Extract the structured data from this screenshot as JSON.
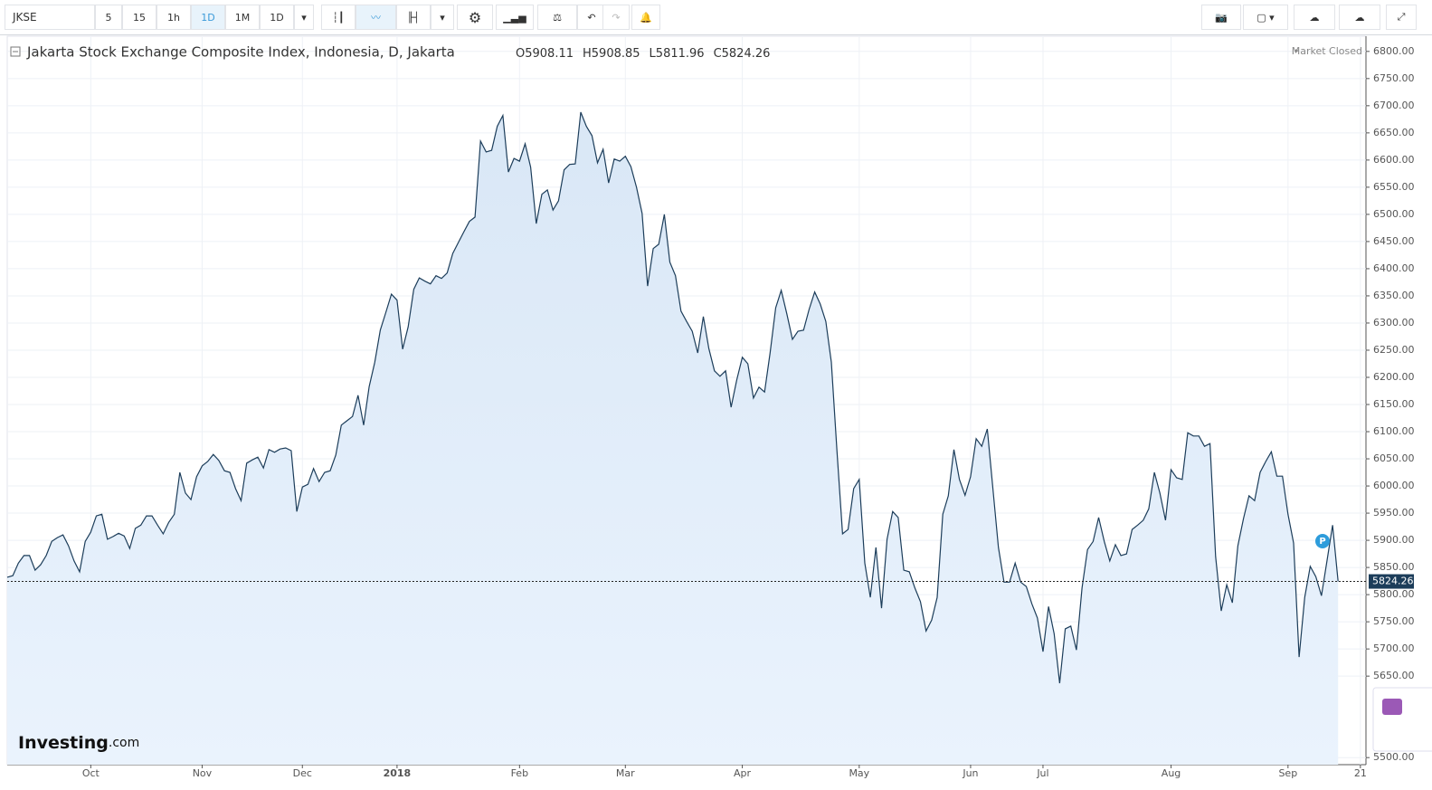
{
  "toolbar": {
    "symbol": "JKSE",
    "intervals": [
      "5",
      "15",
      "1h",
      "1D",
      "1M",
      "1D"
    ]
  },
  "chart_data": {
    "type": "line",
    "title": "Jakarta Stock Exchange Composite Index, Indonesia, D, Jakarta",
    "ohlc": [
      {
        "label": "O",
        "value": 5908.11
      },
      {
        "label": "H",
        "value": 5908.85
      },
      {
        "label": "L",
        "value": 5811.96
      },
      {
        "label": "C",
        "value": 5824.26
      }
    ],
    "status": "Market Closed",
    "logo": {
      "brand": "Investing",
      "suffix": ".com"
    },
    "color": "#1c3d5a",
    "fill": "#e4eefa",
    "grid": true,
    "last_price": 5824.26,
    "xlim": [
      0,
      244
    ],
    "xticks": [
      {
        "value": 15,
        "label": "Oct"
      },
      {
        "value": 35,
        "label": "Nov"
      },
      {
        "value": 53,
        "label": "Dec"
      },
      {
        "value": 70,
        "label": "2018"
      },
      {
        "value": 92,
        "label": "Feb"
      },
      {
        "value": 111,
        "label": "Mar"
      },
      {
        "value": 132,
        "label": "Apr"
      },
      {
        "value": 153,
        "label": "May"
      },
      {
        "value": 173,
        "label": "Jun"
      },
      {
        "value": 186,
        "label": "Jul"
      },
      {
        "value": 209,
        "label": "Aug"
      },
      {
        "value": 230,
        "label": "Sep"
      },
      {
        "value": 243,
        "label": "21"
      }
    ],
    "ylim": [
      5487,
      6828
    ],
    "yticks": [
      {
        "value": 6800,
        "label": "6800.00"
      },
      {
        "value": 6750,
        "label": "6750.00"
      },
      {
        "value": 6700,
        "label": "6700.00"
      },
      {
        "value": 6650,
        "label": "6650.00"
      },
      {
        "value": 6600,
        "label": "6600.00"
      },
      {
        "value": 6550,
        "label": "6550.00"
      },
      {
        "value": 6500,
        "label": "6500.00"
      },
      {
        "value": 6450,
        "label": "6450.00"
      },
      {
        "value": 6400,
        "label": "6400.00"
      },
      {
        "value": 6350,
        "label": "6350.00"
      },
      {
        "value": 6300,
        "label": "6300.00"
      },
      {
        "value": 6250,
        "label": "6250.00"
      },
      {
        "value": 6200,
        "label": "6200.00"
      },
      {
        "value": 6150,
        "label": "6150.00"
      },
      {
        "value": 6100,
        "label": "6100.00"
      },
      {
        "value": 6050,
        "label": "6050.00"
      },
      {
        "value": 6000,
        "label": "6000.00"
      },
      {
        "value": 5950,
        "label": "5950.00"
      },
      {
        "value": 5900,
        "label": "5900.00"
      },
      {
        "value": 5850,
        "label": "5850.00"
      },
      {
        "value": 5800,
        "label": "5800.00"
      },
      {
        "value": 5750,
        "label": "5750.00"
      },
      {
        "value": 5700,
        "label": "5700.00"
      },
      {
        "value": 5650,
        "label": "5650.00"
      },
      {
        "value": 5500,
        "label": "5500.00"
      }
    ],
    "values": [
      5832,
      5835,
      5858,
      5872,
      5872,
      5845,
      5855,
      5872,
      5898,
      5905,
      5910,
      5890,
      5862,
      5842,
      5898,
      5915,
      5945,
      5948,
      5902,
      5907,
      5913,
      5908,
      5885,
      5922,
      5928,
      5945,
      5945,
      5928,
      5912,
      5933,
      5948,
      6025,
      5987,
      5975,
      6017,
      6037,
      6045,
      6058,
      6047,
      6028,
      6025,
      5995,
      5973,
      6042,
      6048,
      6053,
      6033,
      6067,
      6062,
      6068,
      6070,
      6065,
      5953,
      5998,
      6003,
      6032,
      6008,
      6025,
      6028,
      6057,
      6112,
      6120,
      6128,
      6167,
      6112,
      6183,
      6228,
      6287,
      6320,
      6353,
      6342,
      6252,
      6293,
      6362,
      6383,
      6377,
      6372,
      6387,
      6382,
      6392,
      6428,
      6448,
      6468,
      6487,
      6495,
      6635,
      6615,
      6618,
      6662,
      6682,
      6578,
      6603,
      6598,
      6630,
      6587,
      6483,
      6537,
      6545,
      6508,
      6525,
      6582,
      6592,
      6593,
      6688,
      6662,
      6645,
      6595,
      6620,
      6558,
      6602,
      6598,
      6607,
      6588,
      6550,
      6502,
      6368,
      6437,
      6445,
      6500,
      6412,
      6387,
      6322,
      6303,
      6285,
      6245,
      6312,
      6253,
      6212,
      6202,
      6212,
      6145,
      6195,
      6237,
      6225,
      6162,
      6182,
      6173,
      6245,
      6328,
      6360,
      6317,
      6270,
      6285,
      6287,
      6325,
      6357,
      6335,
      6303,
      6228,
      6065,
      5912,
      5920,
      5995,
      6012,
      5858,
      5795,
      5887,
      5775,
      5902,
      5953,
      5942,
      5845,
      5842,
      5812,
      5787,
      5733,
      5753,
      5795,
      5948,
      5982,
      6067,
      6012,
      5983,
      6017,
      6087,
      6073,
      6105,
      5995,
      5887,
      5823,
      5823,
      5858,
      5823,
      5815,
      5783,
      5757,
      5695,
      5778,
      5728,
      5637,
      5737,
      5742,
      5698,
      5812,
      5883,
      5898,
      5942,
      5898,
      5862,
      5892,
      5872,
      5875,
      5920,
      5928,
      5937,
      5958,
      6025,
      5987,
      5937,
      6030,
      6015,
      6012,
      6098,
      6092,
      6092,
      6073,
      6078,
      5870,
      5770,
      5818,
      5785,
      5890,
      5940,
      5982,
      5973,
      6025,
      6045,
      6063,
      6018,
      6018,
      5948,
      5895,
      5685,
      5795,
      5852,
      5833,
      5798,
      5862,
      5928,
      5824.26
    ]
  }
}
